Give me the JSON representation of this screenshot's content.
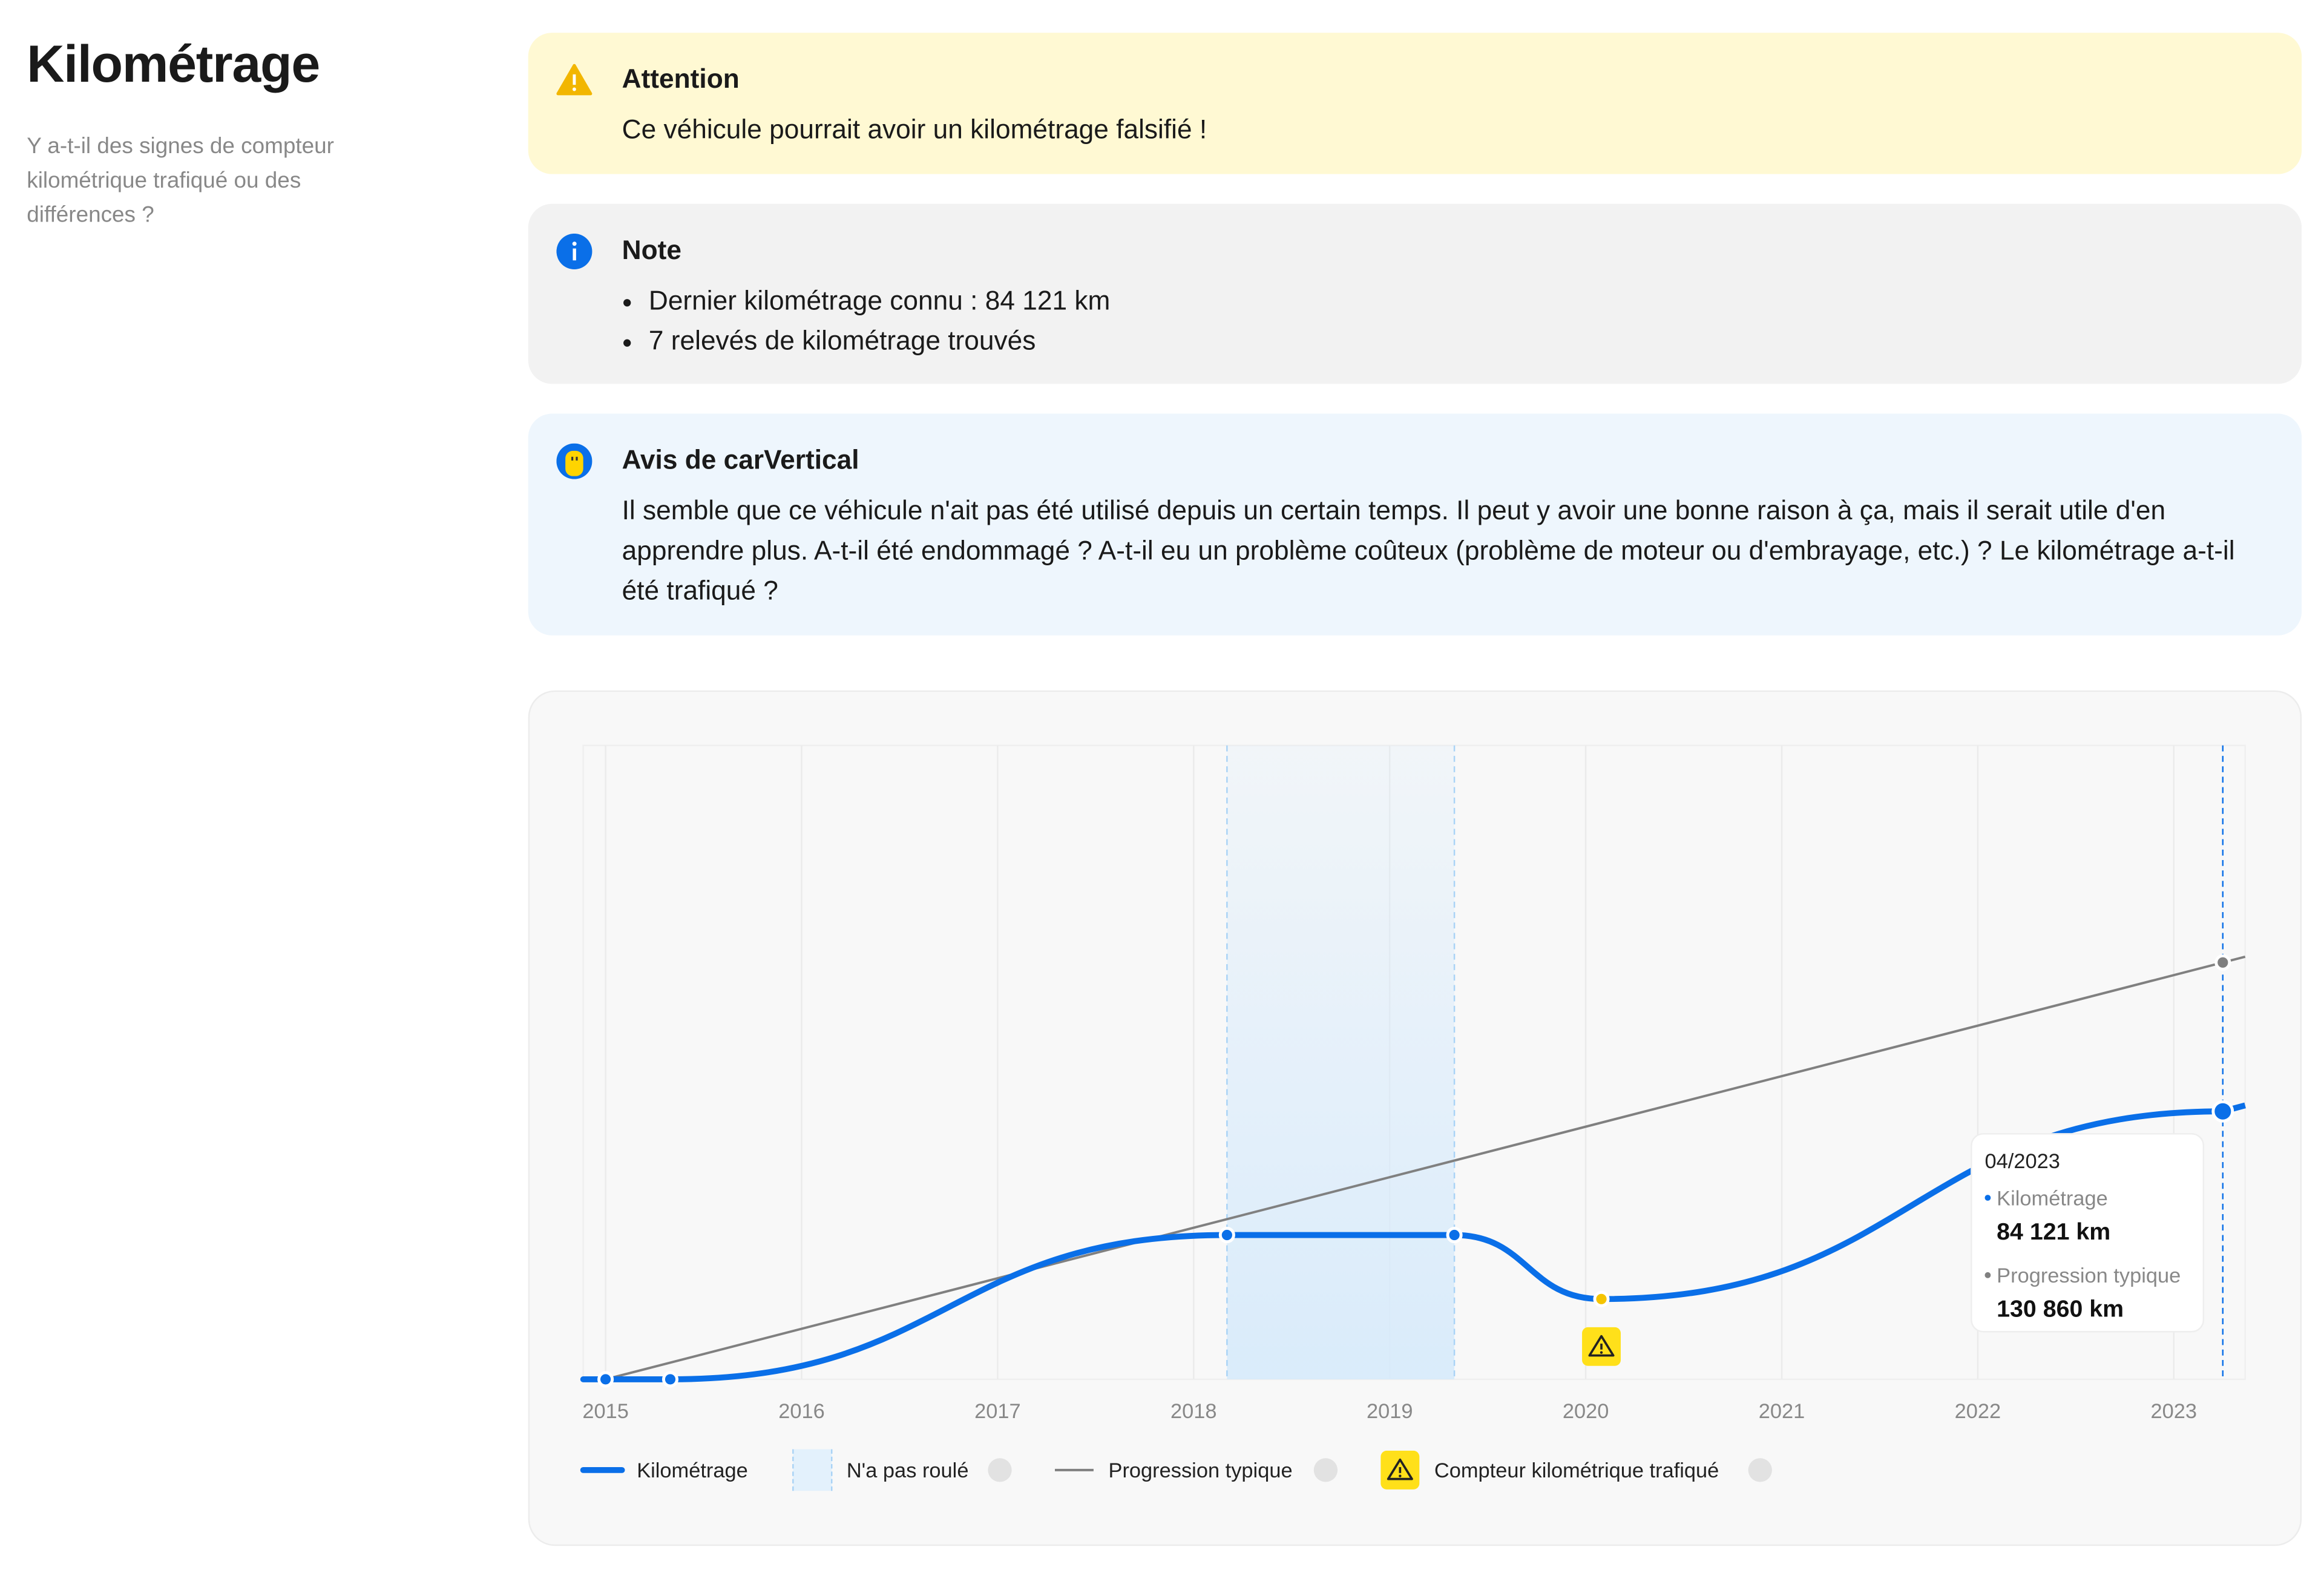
{
  "header": {
    "title": "Kilométrage",
    "subtitle": "Y a-t-il des signes de compteur kilométrique trafiqué ou des différences ?"
  },
  "alerts": [
    {
      "title": "Attention",
      "text": "Ce véhicule pourrait avoir un kilométrage falsifié !"
    },
    {
      "title": "Note",
      "items": [
        "Dernier kilométrage connu : 84 121 km",
        "7 relevés de kilométrage trouvés"
      ]
    },
    {
      "title": "Avis de carVertical",
      "text": "Il semble que ce véhicule n'ait pas été utilisé depuis un certain temps. Il peut y avoir une bonne raison à ça, mais il serait utile d'en apprendre plus. A-t-il été endommagé ? A-t-il eu un problème coûteux (problème de moteur ou d'embrayage, etc.) ? Le kilométrage a-t-il été trafiqué ?"
    }
  ],
  "chart_data": {
    "type": "line",
    "x": [
      2015.0,
      2015.33,
      2018.17,
      2019.33,
      2020.08,
      2023.25
    ],
    "series": [
      {
        "name": "Kilométrage",
        "color": "#0a6fe8",
        "values": [
          0,
          0,
          45300,
          45300,
          25200,
          84121
        ]
      },
      {
        "name": "Progression typique",
        "color": "#808080",
        "x": [
          2015.0,
          2023.25
        ],
        "values": [
          0,
          130860
        ]
      }
    ],
    "no_drive": {
      "name": "N'a pas roulé",
      "color": "#bfe0fa",
      "x": [
        2018.17,
        2019.33
      ]
    },
    "tampering": {
      "name": "Compteur kilométrique trafiqué",
      "color": "#ffe01a",
      "x": 2020.08
    },
    "xlim": [
      2014.886,
      2023.364
    ],
    "xticks": [
      2015,
      2016,
      2017,
      2018,
      2019,
      2020,
      2021,
      2022,
      2023
    ],
    "ylim": [
      0,
      199000
    ],
    "grid": true,
    "tooltip": {
      "date": "04/2023",
      "labels": [
        "84 121 km",
        "130 860 km"
      ]
    }
  }
}
